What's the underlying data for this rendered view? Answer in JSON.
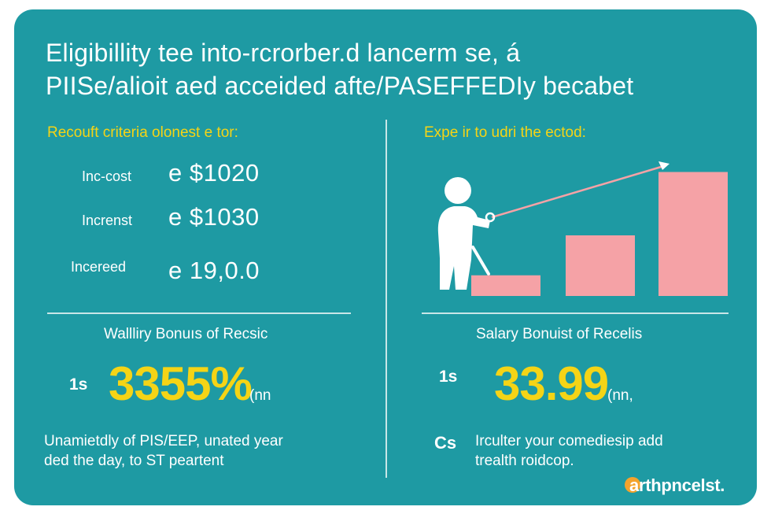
{
  "colors": {
    "background": "#1e9aa3",
    "text": "#ffffff",
    "accent_yellow": "#f5d416",
    "bar_pink": "#f5a2a6",
    "logo_orange": "#f4a32c",
    "divider": "#e6f3f3"
  },
  "title": {
    "line1": "Eligibillity tee into-rcrorber.d lancerm se, á",
    "line2": "PIISe/alioit aed acceided afte/PASEFFEDIy becabet"
  },
  "left": {
    "heading": "Recouft criteria olonest e tor:",
    "rows": [
      {
        "label": "Inc-cost",
        "value": "e $1020"
      },
      {
        "label": "Increnst",
        "value": "e $1030"
      },
      {
        "label": "Incereed",
        "value": "e 19,0.0"
      }
    ],
    "bonus": {
      "title": "Wallliry Bonuıs of Recsic",
      "prefix": "1s",
      "value": "3355%",
      "suffix": "(nn",
      "note_line1": "Unamietdly of PIS/EEP, unated year",
      "note_line2": "ded the day, to ST peartent"
    }
  },
  "right": {
    "heading": "Expe ir to udri the ectod:",
    "chart_icon": "person-pointer-icon",
    "bars": [
      0.15,
      0.44,
      0.9
    ],
    "bonus": {
      "title": "Salary Bonuist of Recelis",
      "prefix": "1s",
      "value": "33.99",
      "suffix": "(nn,",
      "note_prefix": "Cs",
      "note_line1": "Irculter your comediesip add",
      "note_line2": "trealth roidcop."
    }
  },
  "logo": {
    "first_letter": "a",
    "rest": "rthpncelst."
  }
}
